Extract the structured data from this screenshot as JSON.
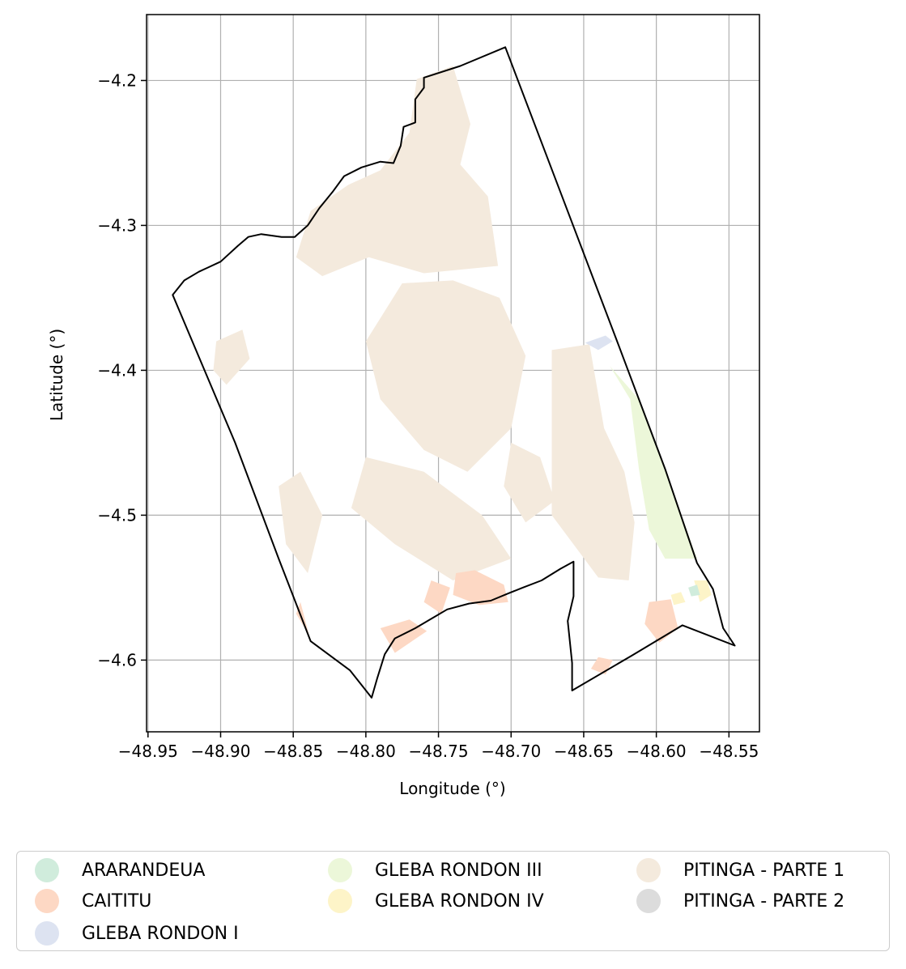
{
  "chart_data": {
    "type": "map",
    "xlabel": "Longitude (°)",
    "ylabel": "Latitude (°)",
    "xlim": [
      -48.951,
      -48.529
    ],
    "ylim": [
      -4.6495,
      -4.1545
    ],
    "xticks": [
      -48.95,
      -48.9,
      -48.85,
      -48.8,
      -48.75,
      -48.7,
      -48.65,
      -48.6,
      -48.55
    ],
    "xtick_labels": [
      "−48.95",
      "−48.90",
      "−48.85",
      "−48.80",
      "−48.75",
      "−48.70",
      "−48.65",
      "−48.60",
      "−48.55"
    ],
    "yticks": [
      -4.2,
      -4.3,
      -4.4,
      -4.5,
      -4.6
    ],
    "ytick_labels": [
      "−4.2",
      "−4.3",
      "−4.4",
      "−4.5",
      "−4.6"
    ],
    "grid": true,
    "legend_placement": "below",
    "legend": [
      {
        "label": "ARARANDEUA",
        "color": "#d0ecdc"
      },
      {
        "label": "CAITITU",
        "color": "#fdd8c4"
      },
      {
        "label": "GLEBA RONDON I",
        "color": "#dde3f1"
      },
      {
        "label": "GLEBA RONDON III",
        "color": "#ecf7d9"
      },
      {
        "label": "GLEBA RONDON IV",
        "color": "#fdf4c8"
      },
      {
        "label": "PITINGA - PARTE 1",
        "color": "#f4eadd"
      },
      {
        "label": "PITINGA - PARTE 2",
        "color": "#dcdcdc"
      }
    ],
    "boundary": [
      [
        -48.933,
        -4.348
      ],
      [
        -48.925,
        -4.338
      ],
      [
        -48.915,
        -4.332
      ],
      [
        -48.9,
        -4.325
      ],
      [
        -48.888,
        -4.314
      ],
      [
        -48.881,
        -4.308
      ],
      [
        -48.872,
        -4.306
      ],
      [
        -48.858,
        -4.308
      ],
      [
        -48.849,
        -4.308
      ],
      [
        -48.84,
        -4.3
      ],
      [
        -48.832,
        -4.288
      ],
      [
        -48.823,
        -4.277
      ],
      [
        -48.815,
        -4.266
      ],
      [
        -48.803,
        -4.26
      ],
      [
        -48.79,
        -4.256
      ],
      [
        -48.781,
        -4.257
      ],
      [
        -48.776,
        -4.245
      ],
      [
        -48.774,
        -4.232
      ],
      [
        -48.766,
        -4.229
      ],
      [
        -48.766,
        -4.213
      ],
      [
        -48.76,
        -4.205
      ],
      [
        -48.76,
        -4.198
      ],
      [
        -48.735,
        -4.19
      ],
      [
        -48.704,
        -4.177
      ],
      [
        -48.666,
        -4.277
      ],
      [
        -48.627,
        -4.38
      ],
      [
        -48.594,
        -4.468
      ],
      [
        -48.572,
        -4.533
      ],
      [
        -48.561,
        -4.551
      ],
      [
        -48.554,
        -4.578
      ],
      [
        -48.546,
        -4.59
      ],
      [
        -48.582,
        -4.576
      ],
      [
        -48.617,
        -4.597
      ],
      [
        -48.658,
        -4.621
      ],
      [
        -48.658,
        -4.602
      ],
      [
        -48.661,
        -4.573
      ],
      [
        -48.657,
        -4.556
      ],
      [
        -48.657,
        -4.532
      ],
      [
        -48.666,
        -4.537
      ],
      [
        -48.679,
        -4.545
      ],
      [
        -48.692,
        -4.55
      ],
      [
        -48.702,
        -4.554
      ],
      [
        -48.714,
        -4.559
      ],
      [
        -48.729,
        -4.561
      ],
      [
        -48.744,
        -4.565
      ],
      [
        -48.766,
        -4.578
      ],
      [
        -48.78,
        -4.585
      ],
      [
        -48.787,
        -4.596
      ],
      [
        -48.792,
        -4.612
      ],
      [
        -48.796,
        -4.626
      ],
      [
        -48.811,
        -4.607
      ],
      [
        -48.838,
        -4.587
      ],
      [
        -48.86,
        -4.53
      ],
      [
        -48.89,
        -4.45
      ],
      [
        -48.933,
        -4.348
      ]
    ],
    "regions": [
      {
        "name": "PITINGA - PARTE 1",
        "poly": [
          [
            -48.848,
            -4.322
          ],
          [
            -48.838,
            -4.29
          ],
          [
            -48.812,
            -4.272
          ],
          [
            -48.79,
            -4.262
          ],
          [
            -48.77,
            -4.236
          ],
          [
            -48.765,
            -4.199
          ],
          [
            -48.74,
            -4.19
          ],
          [
            -48.728,
            -4.23
          ],
          [
            -48.735,
            -4.258
          ],
          [
            -48.716,
            -4.28
          ],
          [
            -48.709,
            -4.328
          ],
          [
            -48.76,
            -4.333
          ],
          [
            -48.798,
            -4.322
          ],
          [
            -48.83,
            -4.335
          ]
        ]
      },
      {
        "name": "PITINGA - PARTE 1",
        "poly": [
          [
            -48.672,
            -4.386
          ],
          [
            -48.646,
            -4.382
          ],
          [
            -48.636,
            -4.44
          ],
          [
            -48.622,
            -4.47
          ],
          [
            -48.615,
            -4.505
          ],
          [
            -48.619,
            -4.545
          ],
          [
            -48.64,
            -4.543
          ],
          [
            -48.672,
            -4.5
          ]
        ]
      },
      {
        "name": "PITINGA - PARTE 1",
        "poly": [
          [
            -48.775,
            -4.34
          ],
          [
            -48.74,
            -4.338
          ],
          [
            -48.708,
            -4.35
          ],
          [
            -48.69,
            -4.39
          ],
          [
            -48.7,
            -4.44
          ],
          [
            -48.73,
            -4.47
          ],
          [
            -48.76,
            -4.455
          ],
          [
            -48.79,
            -4.42
          ],
          [
            -48.8,
            -4.38
          ]
        ]
      },
      {
        "name": "PITINGA - PARTE 1",
        "poly": [
          [
            -48.903,
            -4.38
          ],
          [
            -48.885,
            -4.372
          ],
          [
            -48.88,
            -4.392
          ],
          [
            -48.896,
            -4.41
          ],
          [
            -48.905,
            -4.4
          ]
        ]
      },
      {
        "name": "PITINGA - PARTE 1",
        "poly": [
          [
            -48.8,
            -4.46
          ],
          [
            -48.76,
            -4.47
          ],
          [
            -48.72,
            -4.5
          ],
          [
            -48.7,
            -4.53
          ],
          [
            -48.74,
            -4.545
          ],
          [
            -48.78,
            -4.52
          ],
          [
            -48.81,
            -4.495
          ]
        ]
      },
      {
        "name": "PITINGA - PARTE 1",
        "poly": [
          [
            -48.86,
            -4.48
          ],
          [
            -48.845,
            -4.47
          ],
          [
            -48.83,
            -4.5
          ],
          [
            -48.84,
            -4.54
          ],
          [
            -48.855,
            -4.52
          ]
        ]
      },
      {
        "name": "PITINGA - PARTE 1",
        "poly": [
          [
            -48.7,
            -4.45
          ],
          [
            -48.68,
            -4.46
          ],
          [
            -48.67,
            -4.49
          ],
          [
            -48.69,
            -4.505
          ],
          [
            -48.705,
            -4.48
          ]
        ]
      },
      {
        "name": "GLEBA RONDON III",
        "poly": [
          [
            -48.632,
            -4.397
          ],
          [
            -48.618,
            -4.42
          ],
          [
            -48.612,
            -4.468
          ],
          [
            -48.605,
            -4.51
          ],
          [
            -48.594,
            -4.53
          ],
          [
            -48.572,
            -4.53
          ],
          [
            -48.594,
            -4.468
          ],
          [
            -48.612,
            -4.42
          ]
        ]
      },
      {
        "name": "GLEBA RONDON I",
        "poly": [
          [
            -48.649,
            -4.381
          ],
          [
            -48.635,
            -4.376
          ],
          [
            -48.63,
            -4.38
          ],
          [
            -48.64,
            -4.386
          ]
        ]
      },
      {
        "name": "CAITITU",
        "poly": [
          [
            -48.725,
            -4.538
          ],
          [
            -48.705,
            -4.548
          ],
          [
            -48.702,
            -4.56
          ],
          [
            -48.722,
            -4.562
          ],
          [
            -48.74,
            -4.555
          ],
          [
            -48.738,
            -4.54
          ]
        ]
      },
      {
        "name": "CAITITU",
        "poly": [
          [
            -48.79,
            -4.578
          ],
          [
            -48.77,
            -4.572
          ],
          [
            -48.758,
            -4.58
          ],
          [
            -48.78,
            -4.595
          ]
        ]
      },
      {
        "name": "CAITITU",
        "poly": [
          [
            -48.755,
            -4.545
          ],
          [
            -48.742,
            -4.55
          ],
          [
            -48.748,
            -4.568
          ],
          [
            -48.76,
            -4.56
          ]
        ]
      },
      {
        "name": "CAITITU",
        "poly": [
          [
            -48.845,
            -4.56
          ],
          [
            -48.838,
            -4.587
          ],
          [
            -48.842,
            -4.578
          ],
          [
            -48.848,
            -4.568
          ]
        ]
      },
      {
        "name": "CAITITU",
        "poly": [
          [
            -48.605,
            -4.56
          ],
          [
            -48.59,
            -4.558
          ],
          [
            -48.585,
            -4.578
          ],
          [
            -48.598,
            -4.588
          ],
          [
            -48.608,
            -4.575
          ]
        ]
      },
      {
        "name": "CAITITU",
        "poly": [
          [
            -48.64,
            -4.598
          ],
          [
            -48.63,
            -4.6
          ],
          [
            -48.635,
            -4.61
          ],
          [
            -48.645,
            -4.606
          ]
        ]
      },
      {
        "name": "GLEBA RONDON IV",
        "poly": [
          [
            -48.574,
            -4.545
          ],
          [
            -48.565,
            -4.545
          ],
          [
            -48.562,
            -4.555
          ],
          [
            -48.57,
            -4.56
          ]
        ]
      },
      {
        "name": "GLEBA RONDON IV",
        "poly": [
          [
            -48.59,
            -4.555
          ],
          [
            -48.583,
            -4.553
          ],
          [
            -48.58,
            -4.56
          ],
          [
            -48.588,
            -4.562
          ]
        ]
      },
      {
        "name": "ARARANDEUA",
        "poly": [
          [
            -48.578,
            -4.55
          ],
          [
            -48.572,
            -4.548
          ],
          [
            -48.57,
            -4.555
          ],
          [
            -48.576,
            -4.556
          ]
        ]
      }
    ]
  }
}
